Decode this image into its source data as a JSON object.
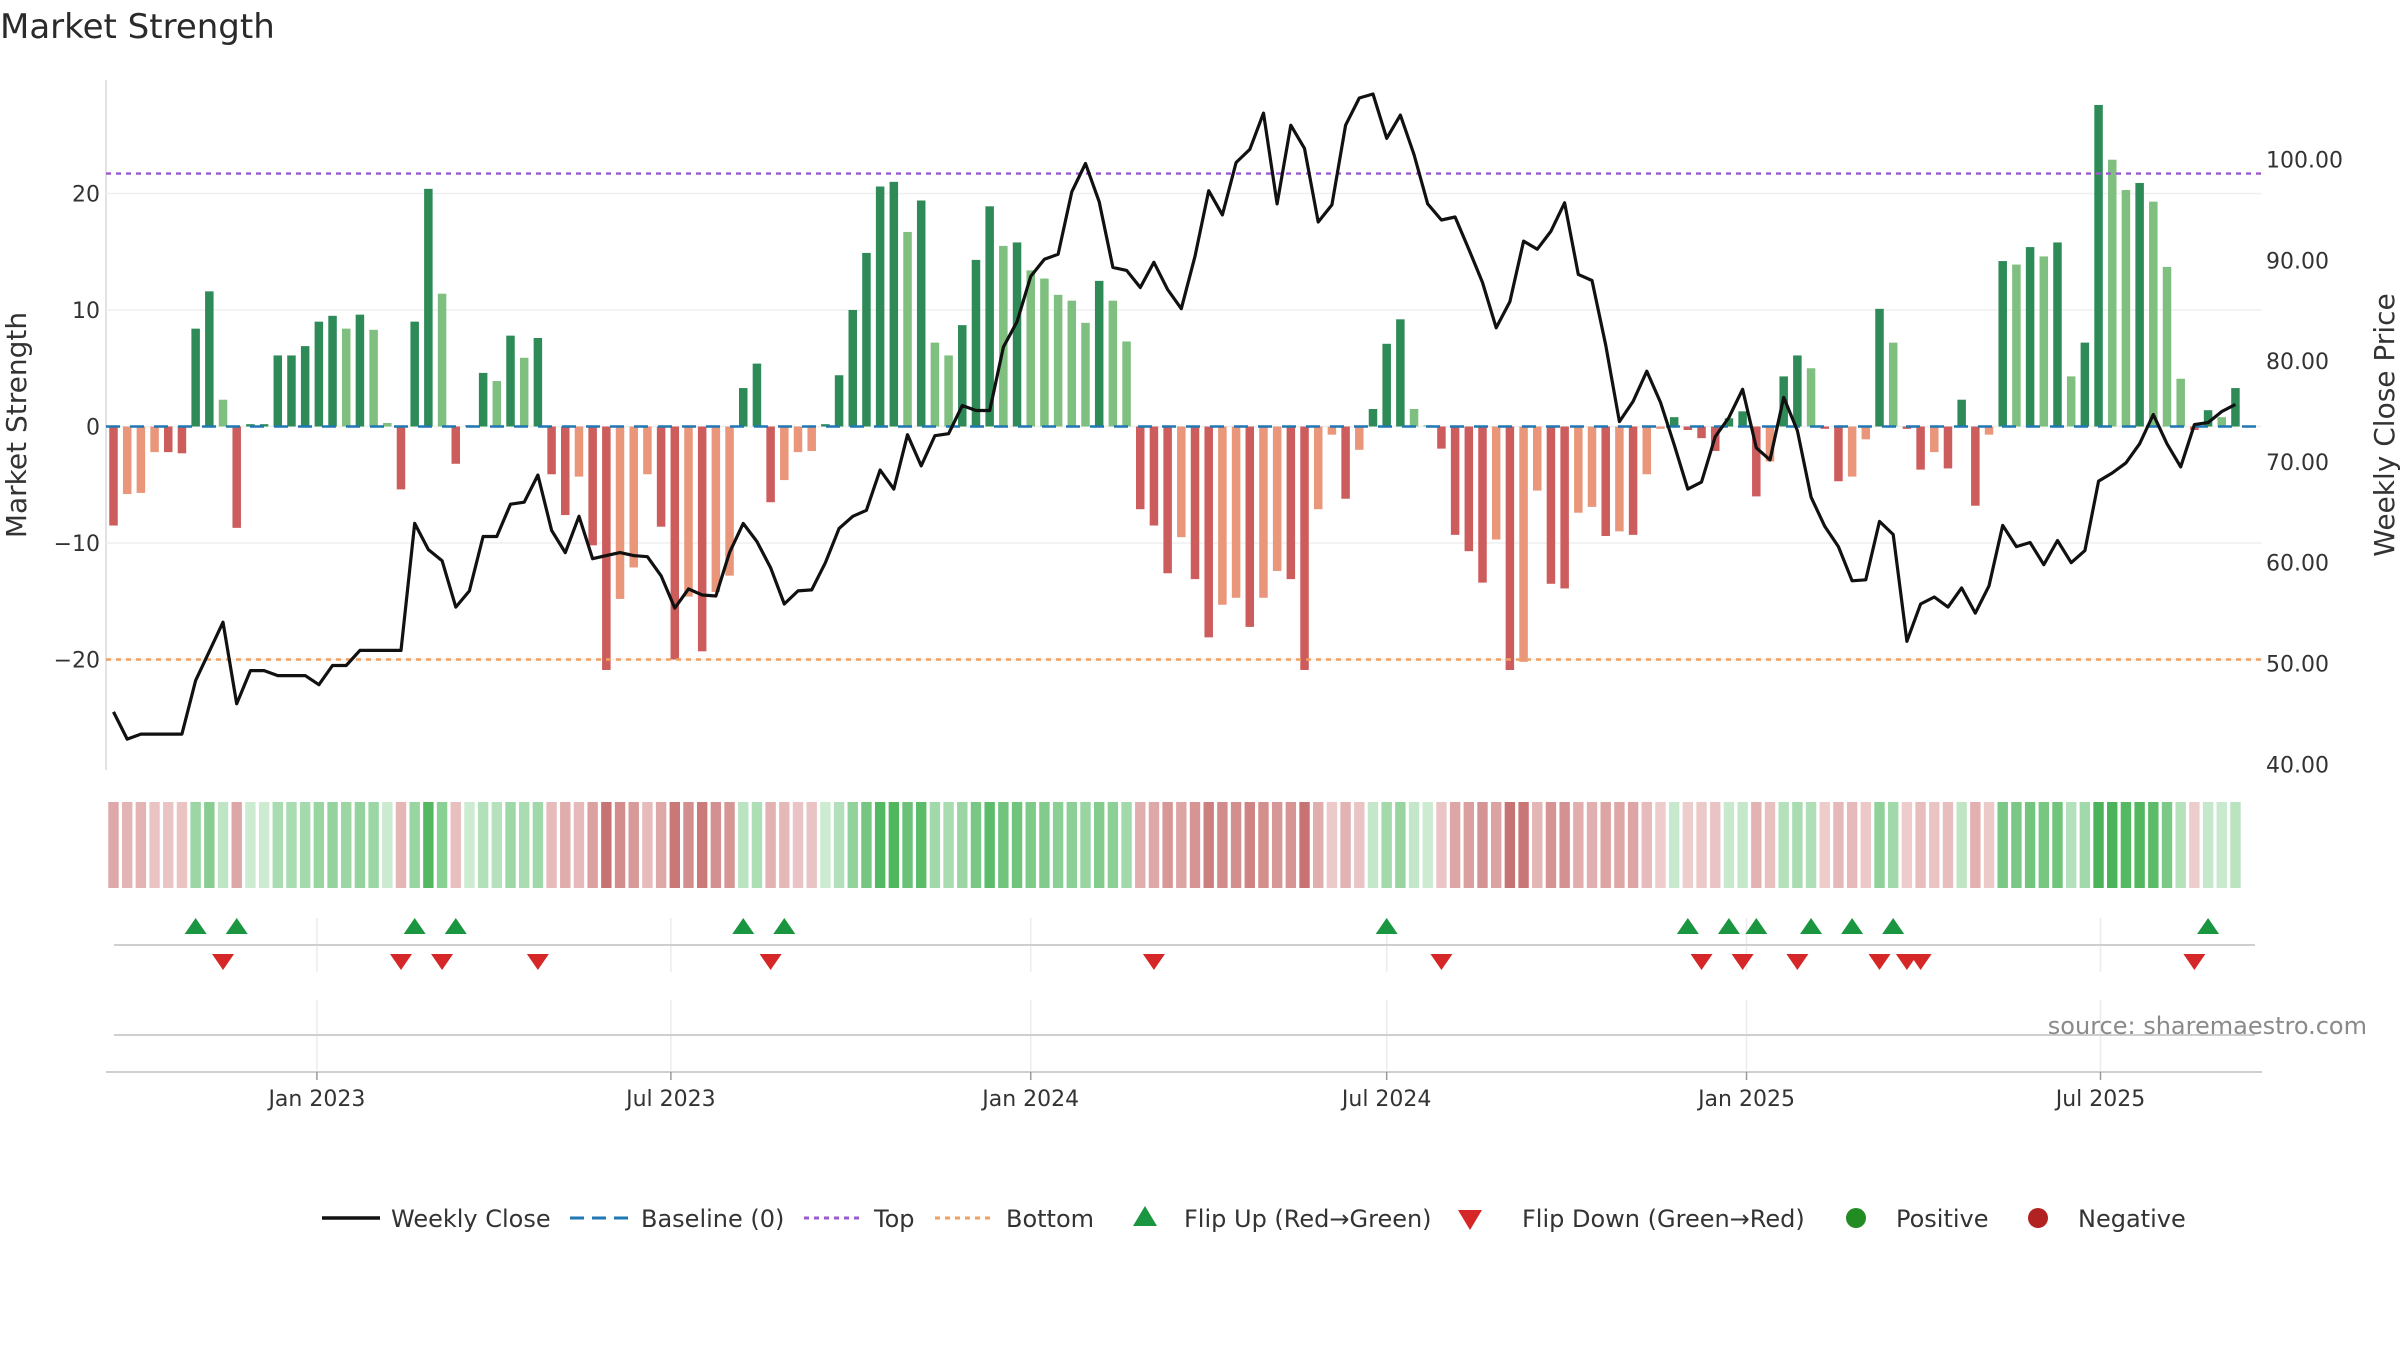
{
  "colors": {
    "price_line": "#111111",
    "baseline": "#1f77b4",
    "top": "#9b59d0",
    "bottom": "#f0a060",
    "flip_up": "#1a9641",
    "flip_down": "#d62728",
    "positive": "#228b22",
    "negative": "#b22222",
    "pos_strong": "#2e8b57",
    "pos_weak": "#7fbf7f",
    "neg_strong": "#cd5c5c",
    "neg_weak": "#e9967a"
  },
  "chart_data": {
    "type": "bar+line",
    "title": "Market Strength",
    "ylabel_left": "Market Strength",
    "ylabel_right": "Weekly Close Price",
    "source": "source: sharemaestro.com",
    "x_start_week": "2022-09-19",
    "x_tick_labels": [
      "Jan 2023",
      "Jul 2023",
      "Jan 2024",
      "Jul 2024",
      "Jan 2025",
      "Jul 2025"
    ],
    "left_yticks": [
      -20,
      -10,
      0,
      10,
      20
    ],
    "left_ytick_labels": [
      "−20",
      "−10",
      "0",
      "10",
      "20"
    ],
    "left_ylim": [
      -29.5,
      30
    ],
    "right_yticks": [
      40,
      50,
      60,
      70,
      80,
      90,
      100
    ],
    "right_ytick_labels": [
      "40.00",
      "50.00",
      "60.00",
      "70.00",
      "80.00",
      "90.00",
      "100.00"
    ],
    "right_ylim": [
      39,
      108
    ],
    "top_level": 22,
    "bottom_level": -20,
    "baseline": 0,
    "strength": [
      -8.5,
      -5.8,
      -5.7,
      -2.2,
      -2.2,
      -2.3,
      8.4,
      11.6,
      2.3,
      -8.7,
      0.2,
      0.2,
      6.1,
      6.1,
      6.9,
      9.0,
      9.5,
      8.4,
      9.6,
      8.3,
      0.3,
      -5.4,
      9.0,
      20.4,
      11.4,
      -3.2,
      0.1,
      4.6,
      3.9,
      7.8,
      5.9,
      7.6,
      -4.1,
      -7.6,
      -4.3,
      -10.2,
      -20.9,
      -14.8,
      -12.1,
      -4.1,
      -8.6,
      -20.0,
      -14.6,
      -19.3,
      -14.2,
      -12.8,
      3.3,
      5.4,
      -6.5,
      -4.6,
      -2.2,
      -2.1,
      0.2,
      4.4,
      10.0,
      14.9,
      20.6,
      21.0,
      16.7,
      19.4,
      7.2,
      6.1,
      8.7,
      14.3,
      18.9,
      15.5,
      15.8,
      13.4,
      12.7,
      11.3,
      10.8,
      8.9,
      12.5,
      10.8,
      7.3,
      -7.1,
      -8.5,
      -12.6,
      -9.5,
      -13.1,
      -18.1,
      -15.3,
      -14.7,
      -17.2,
      -14.7,
      -12.4,
      -13.1,
      -20.9,
      -7.1,
      -0.7,
      -6.2,
      -2.0,
      1.5,
      7.1,
      9.2,
      1.5,
      0.1,
      -1.9,
      -9.3,
      -10.7,
      -13.4,
      -9.7,
      -20.9,
      -20.2,
      -5.5,
      -13.5,
      -13.9,
      -7.4,
      -6.9,
      -9.4,
      -9.0,
      -9.3,
      -4.1,
      -0.2,
      0.8,
      -0.3,
      -1.0,
      -2.1,
      0.7,
      1.3,
      -6.0,
      -3.0,
      4.3,
      6.1,
      5.0,
      -0.2,
      -4.7,
      -4.3,
      -1.1,
      10.1,
      7.2,
      -0.2,
      -3.7,
      -2.2,
      -3.6,
      2.3,
      -6.8,
      -0.7,
      14.2,
      13.9,
      15.4,
      14.6,
      15.8,
      4.3,
      7.2,
      27.6,
      22.9,
      20.3,
      20.9,
      19.3,
      13.7,
      4.1,
      -0.3,
      1.4,
      0.8,
      3.3
    ],
    "weekly_close": [
      45.2,
      42.5,
      43.0,
      43.0,
      43.0,
      43.0,
      48.3,
      51.2,
      54.1,
      46.0,
      49.3,
      49.3,
      48.8,
      48.8,
      48.8,
      47.9,
      49.8,
      49.8,
      51.3,
      51.3,
      51.3,
      51.3,
      63.9,
      61.3,
      60.2,
      55.6,
      57.2,
      62.6,
      62.6,
      65.8,
      66.0,
      68.7,
      63.2,
      61.0,
      64.6,
      60.4,
      60.7,
      61.0,
      60.7,
      60.6,
      58.7,
      55.5,
      57.4,
      56.8,
      56.7,
      61.0,
      63.9,
      62.1,
      59.5,
      55.9,
      57.2,
      57.3,
      60.0,
      63.4,
      64.6,
      65.2,
      69.2,
      67.3,
      72.7,
      69.6,
      72.6,
      72.8,
      75.6,
      75.1,
      75.1,
      81.4,
      83.9,
      88.4,
      90.1,
      90.6,
      96.8,
      99.6,
      95.8,
      89.3,
      89.0,
      87.3,
      89.8,
      87.1,
      85.2,
      90.4,
      96.9,
      94.5,
      99.7,
      101.0,
      104.6,
      95.6,
      103.4,
      101.1,
      93.8,
      95.5,
      103.4,
      106.1,
      106.5,
      102.1,
      104.4,
      100.5,
      95.6,
      94.0,
      94.3,
      91.1,
      87.8,
      83.3,
      85.9,
      91.9,
      91.1,
      92.9,
      95.7,
      88.6,
      88.0,
      81.6,
      74.0,
      76.0,
      79.0,
      75.9,
      71.7,
      67.3,
      68.0,
      72.5,
      74.4,
      77.2,
      71.4,
      70.2,
      76.4,
      73.1,
      66.5,
      63.6,
      61.6,
      58.2,
      58.3,
      64.1,
      62.8,
      52.2,
      55.9,
      56.6,
      55.6,
      57.5,
      55.0,
      57.7,
      63.7,
      61.6,
      62.0,
      59.8,
      62.2,
      60.0,
      61.2,
      68.1,
      68.9,
      69.9,
      71.8,
      74.7,
      71.8,
      69.5,
      73.7,
      73.9,
      75.0,
      75.7
    ],
    "flip_up_indices": [
      6,
      9,
      22,
      25,
      46,
      49,
      93,
      115,
      118,
      120,
      124,
      127,
      130,
      153
    ],
    "flip_down_indices": [
      8,
      21,
      24,
      31,
      48,
      76,
      97,
      116,
      119,
      123,
      129,
      132,
      131,
      152
    ]
  },
  "legend": [
    {
      "key": "line",
      "label": "Weekly Close"
    },
    {
      "key": "baseline",
      "label": "Baseline (0)"
    },
    {
      "key": "top",
      "label": "Top"
    },
    {
      "key": "bottom",
      "label": "Bottom"
    },
    {
      "key": "flip_up",
      "label": "Flip Up (Red→Green)"
    },
    {
      "key": "flip_down",
      "label": "Flip Down (Green→Red)"
    },
    {
      "key": "positive",
      "label": "Positive"
    },
    {
      "key": "negative",
      "label": "Negative"
    }
  ]
}
